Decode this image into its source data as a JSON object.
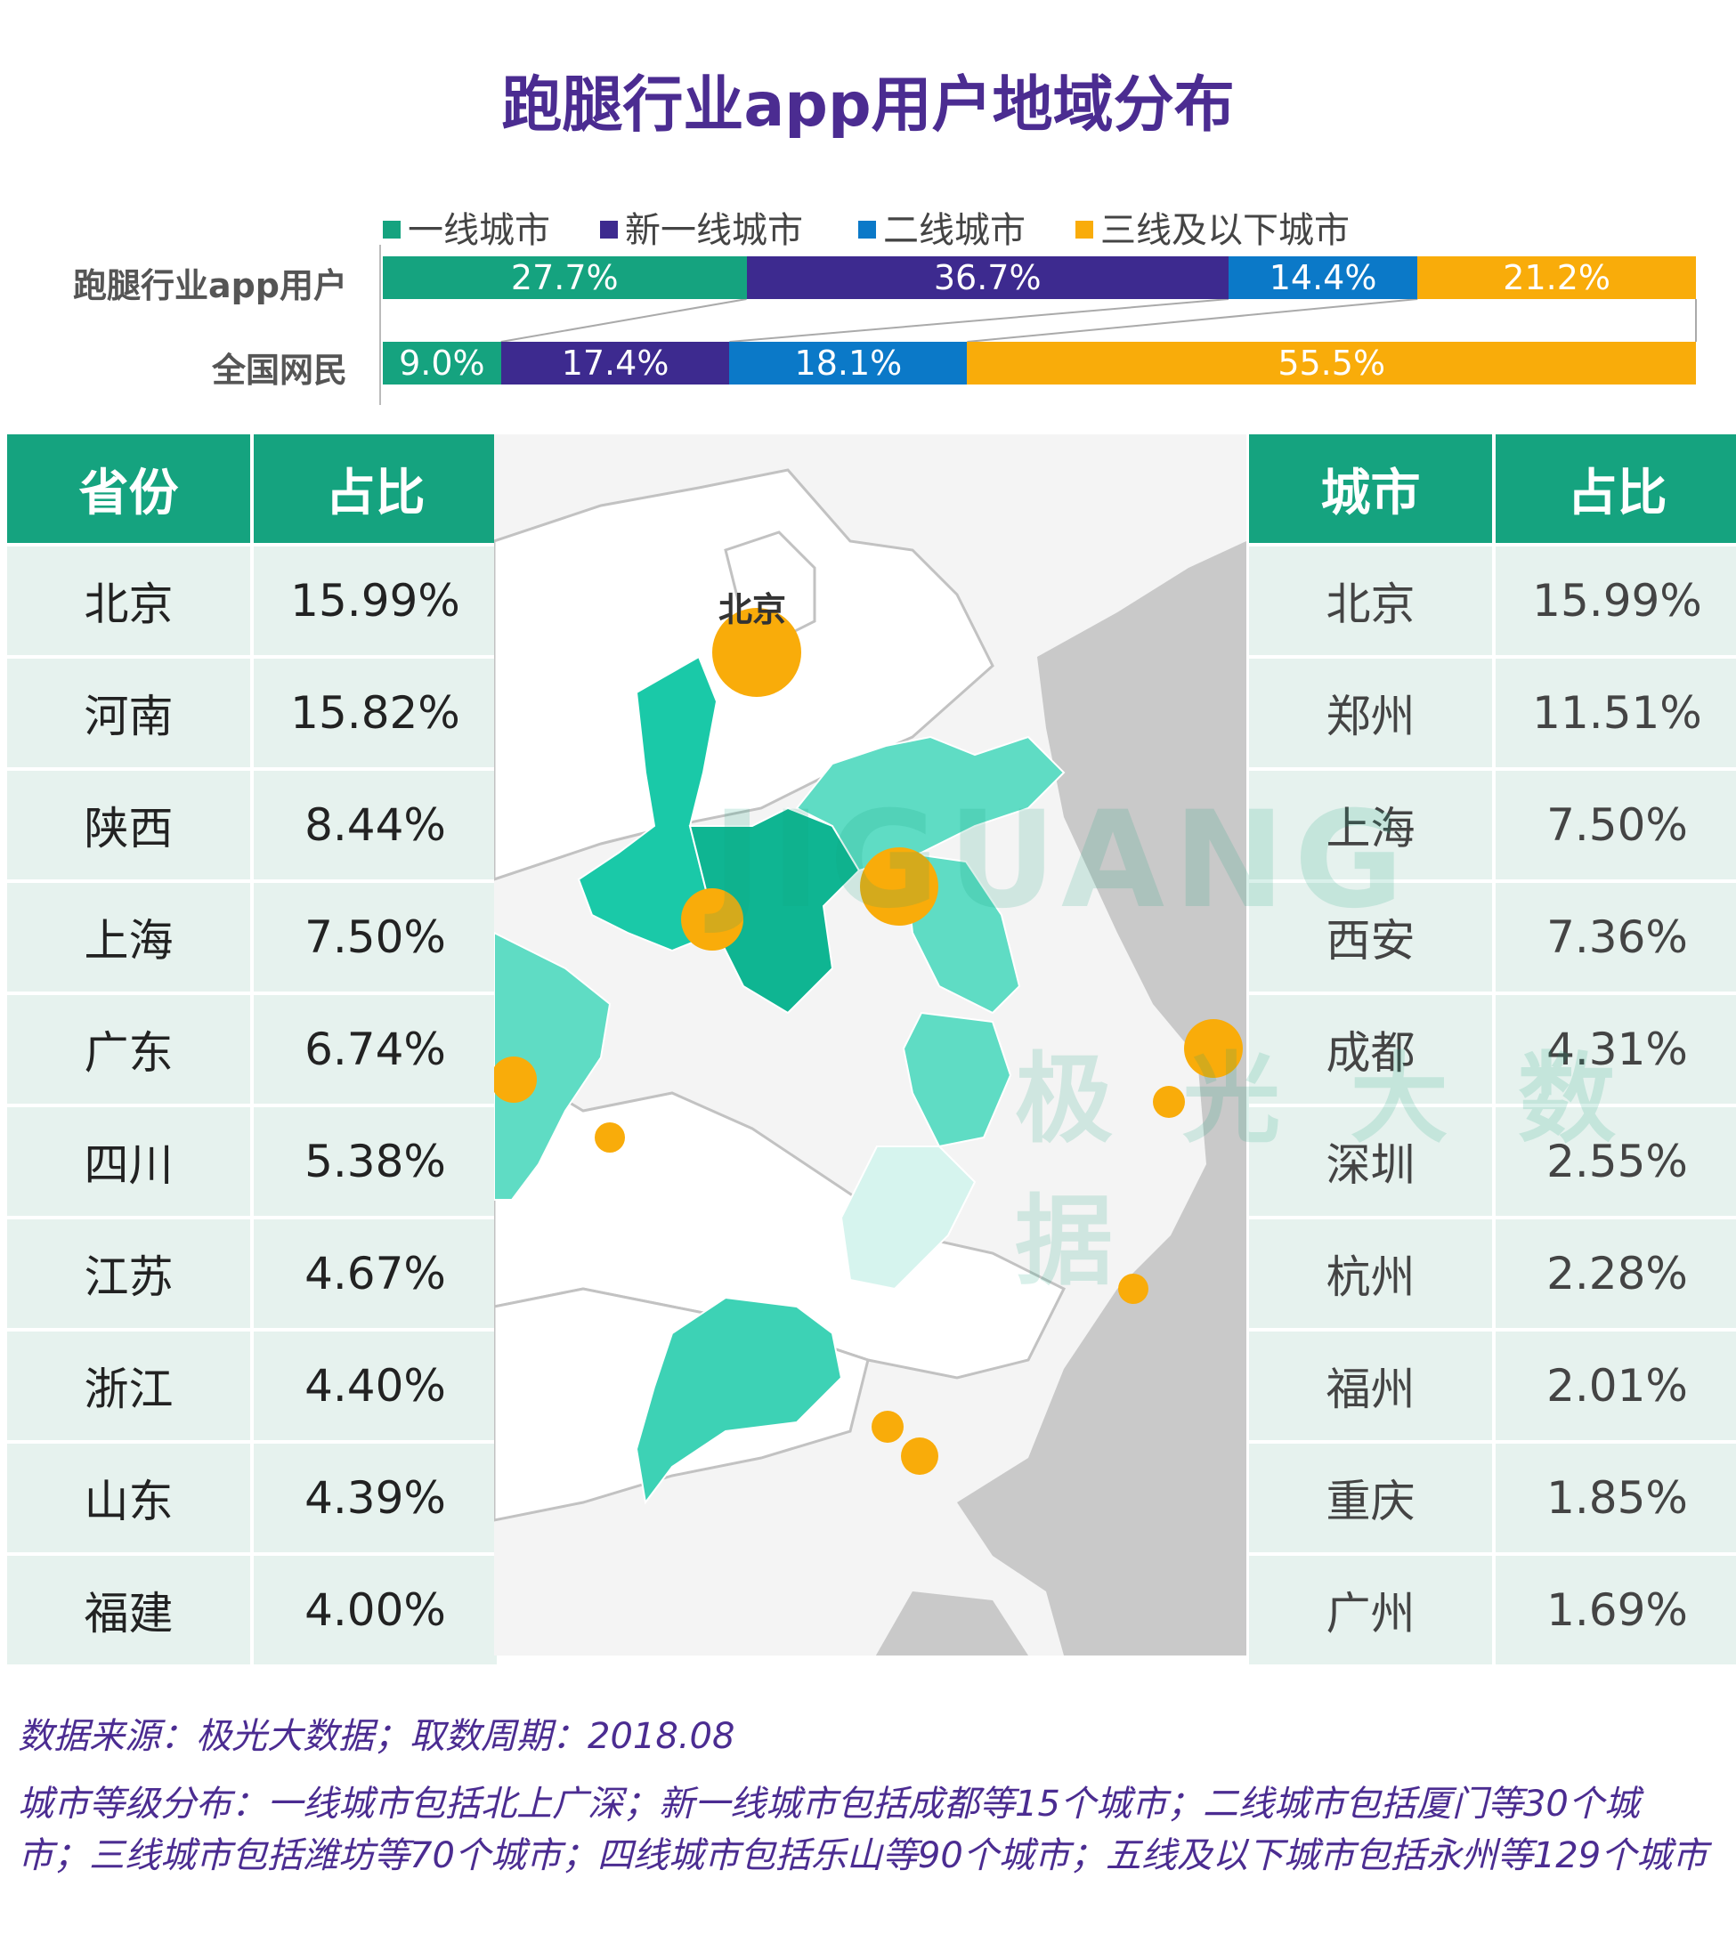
{
  "title": "跑腿行业app用户地域分布",
  "legend": [
    {
      "label": "一线城市",
      "color": "#15a37f"
    },
    {
      "label": "新一线城市",
      "color": "#3d2a8f"
    },
    {
      "label": "二线城市",
      "color": "#0b79c8"
    },
    {
      "label": "三线及以下城市",
      "color": "#f9ac0a"
    }
  ],
  "chart_data": [
    {
      "type": "bar",
      "subtype": "stacked-100",
      "categories": [
        "跑腿行业app用户",
        "全国网民"
      ],
      "series": [
        {
          "name": "一线城市",
          "values": [
            27.7,
            9.0
          ],
          "labels": [
            "27.7%",
            "9.0%"
          ]
        },
        {
          "name": "新一线城市",
          "values": [
            36.7,
            17.4
          ],
          "labels": [
            "36.7%",
            "17.4%"
          ]
        },
        {
          "name": "二线城市",
          "values": [
            14.4,
            18.1
          ],
          "labels": [
            "14.4%",
            "18.1%"
          ]
        },
        {
          "name": "三线及以下城市",
          "values": [
            21.2,
            55.5
          ],
          "labels": [
            "21.2%",
            "55.5%"
          ]
        }
      ],
      "legend_position": "top"
    },
    {
      "type": "table",
      "title": "省份占比",
      "columns": [
        "省份",
        "占比"
      ],
      "rows": [
        [
          "北京",
          "15.99%"
        ],
        [
          "河南",
          "15.82%"
        ],
        [
          "陕西",
          "8.44%"
        ],
        [
          "上海",
          "7.50%"
        ],
        [
          "广东",
          "6.74%"
        ],
        [
          "四川",
          "5.38%"
        ],
        [
          "江苏",
          "4.67%"
        ],
        [
          "浙江",
          "4.40%"
        ],
        [
          "山东",
          "4.39%"
        ],
        [
          "福建",
          "4.00%"
        ]
      ]
    },
    {
      "type": "table",
      "title": "城市占比",
      "columns": [
        "城市",
        "占比"
      ],
      "rows": [
        [
          "北京",
          "15.99%"
        ],
        [
          "郑州",
          "11.51%"
        ],
        [
          "上海",
          "7.50%"
        ],
        [
          "西安",
          "7.36%"
        ],
        [
          "成都",
          "4.31%"
        ],
        [
          "深圳",
          "2.55%"
        ],
        [
          "杭州",
          "2.28%"
        ],
        [
          "福州",
          "2.01%"
        ],
        [
          "重庆",
          "1.85%"
        ],
        [
          "广州",
          "1.69%"
        ]
      ]
    }
  ],
  "map": {
    "label_beijing": "北京"
  },
  "watermark": {
    "text1": "JIGUANG",
    "text2": "极 光 大 数 据"
  },
  "footer": {
    "source": "数据来源：极光大数据；取数周期：2018.08",
    "note": "城市等级分布：一线城市包括北上广深；新一线城市包括成都等15个城市；二线城市包括厦门等30个城市；三线城市包括潍坊等70个城市；四线城市包括乐山等90个城市；五线及以下城市包括永州等129个城市"
  },
  "colors": {
    "title": "#4b2c91",
    "table_header": "#15a37f",
    "table_row": "#e6f2ee",
    "bubble": "#f9ac0a"
  }
}
